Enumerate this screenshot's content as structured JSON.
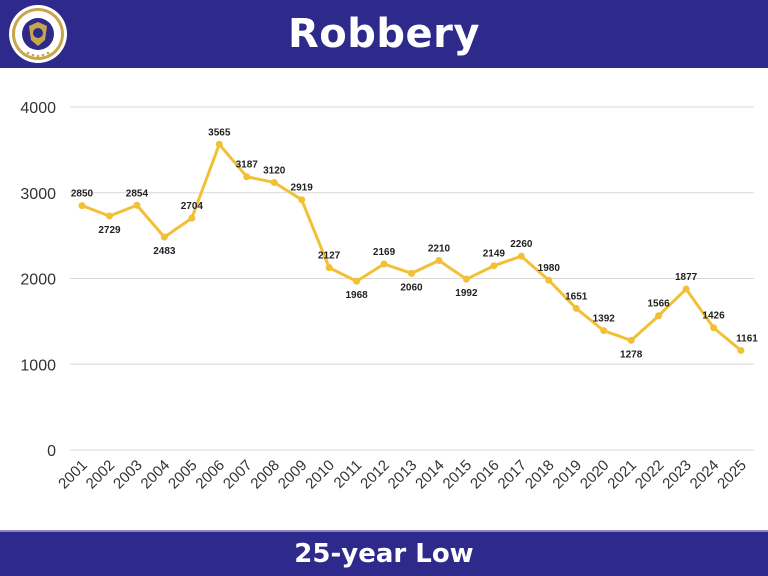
{
  "header": {
    "title": "Robbery",
    "logo_icon": "police-seal-icon"
  },
  "footer": {
    "caption": "25-year Low"
  },
  "colors": {
    "banner": "#2e2a8c",
    "line": "#f2c037",
    "grid": "#d9d9d9",
    "axis_text": "#333333",
    "label_text": "#222222"
  },
  "chart_data": {
    "type": "line",
    "title": "Robbery",
    "xlabel": "",
    "ylabel": "",
    "x": [
      "2001",
      "2002",
      "2003",
      "2004",
      "2005",
      "2006",
      "2007",
      "2008",
      "2009",
      "2010",
      "2011",
      "2012",
      "2013",
      "2014",
      "2015",
      "2016",
      "2017",
      "2018",
      "2019",
      "2020",
      "2021",
      "2022",
      "2023",
      "2024",
      "2025"
    ],
    "series": [
      {
        "values": [
          2850,
          2729,
          2854,
          2483,
          2704,
          3565,
          3187,
          3120,
          2919,
          2127,
          1968,
          2169,
          2060,
          2210,
          1992,
          2149,
          2260,
          1980,
          1651,
          1392,
          1278,
          1566,
          1877,
          1426,
          1161
        ]
      }
    ],
    "ylim": [
      0,
      4000
    ],
    "yticks": [
      0,
      1000,
      2000,
      3000,
      4000
    ],
    "grid": true,
    "legend": "none",
    "data_labels": true
  }
}
